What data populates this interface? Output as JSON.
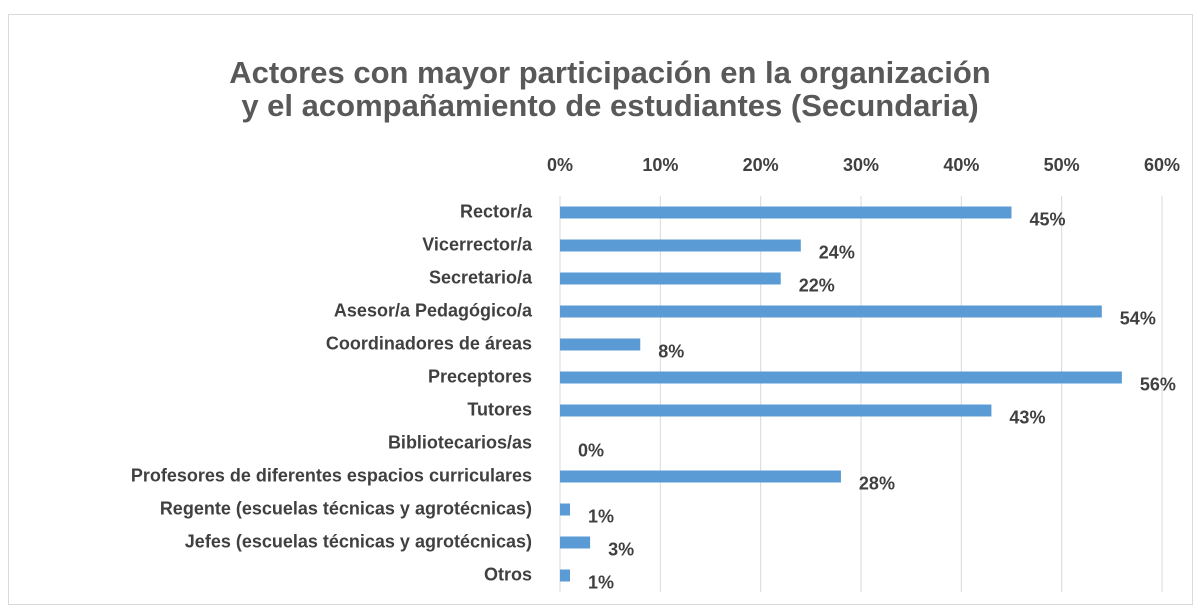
{
  "chart_data": {
    "type": "bar",
    "orientation": "horizontal",
    "title": [
      "Actores con mayor participación en la organización",
      "y el acompañamiento de estudiantes (Secundaria)"
    ],
    "categories": [
      "Rector/a",
      "Vicerrector/a",
      "Secretario/a",
      "Asesor/a Pedagógico/a",
      "Coordinadores de áreas",
      "Preceptores",
      "Tutores",
      "Bibliotecarios/as",
      "Profesores de diferentes espacios curriculares",
      "Regente (escuelas técnicas y agrotécnicas)",
      "Jefes (escuelas técnicas y agrotécnicas)",
      "Otros"
    ],
    "values": [
      45,
      24,
      22,
      54,
      8,
      56,
      43,
      0,
      28,
      1,
      3,
      1
    ],
    "value_labels": [
      "45%",
      "24%",
      "22%",
      "54%",
      "8%",
      "56%",
      "43%",
      "0%",
      "28%",
      "1%",
      "3%",
      "1%"
    ],
    "color": "#5b9bd5",
    "xlim": [
      0,
      60
    ],
    "xticks": [
      {
        "value": 0,
        "label": "0%"
      },
      {
        "value": 10,
        "label": "10%"
      },
      {
        "value": 20,
        "label": "20%"
      },
      {
        "value": 30,
        "label": "30%"
      },
      {
        "value": 40,
        "label": "40%"
      },
      {
        "value": 50,
        "label": "50%"
      },
      {
        "value": 60,
        "label": "60%"
      }
    ],
    "grid": true
  }
}
